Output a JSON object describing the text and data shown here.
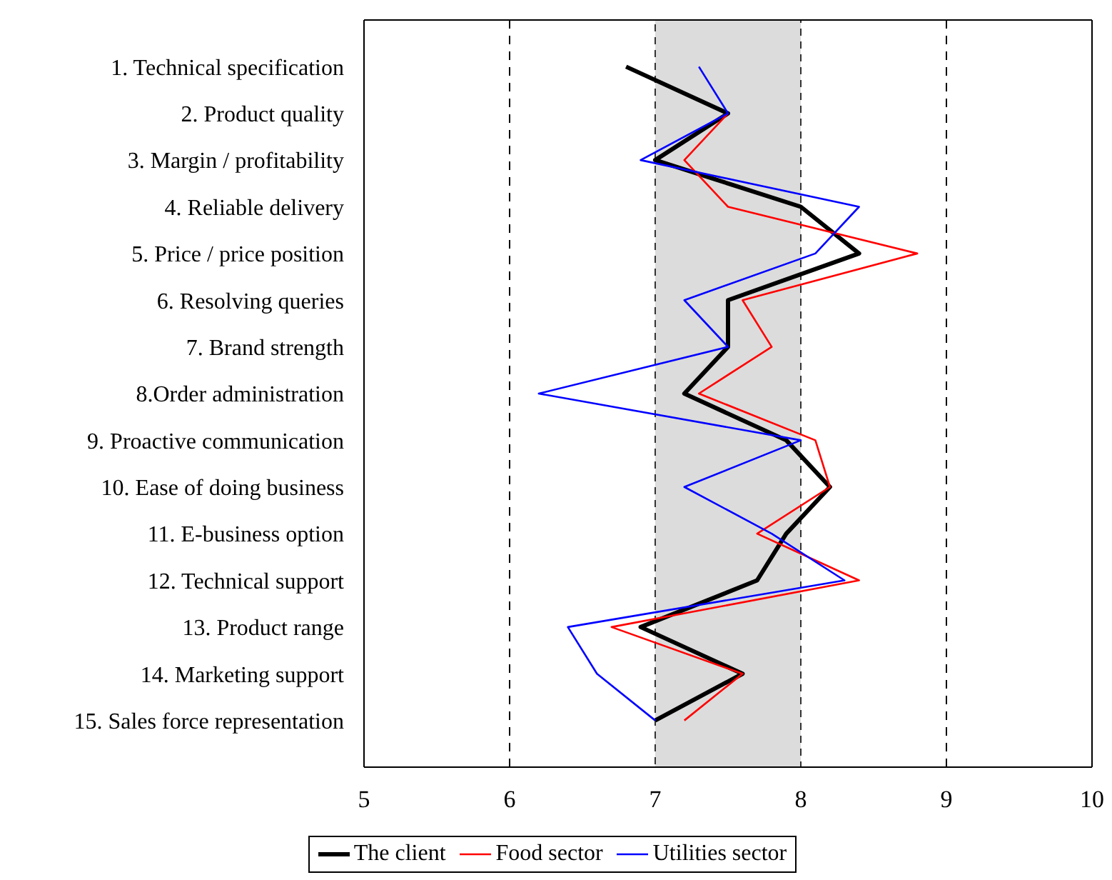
{
  "chart_data": {
    "type": "line",
    "categories": [
      "1. Technical specification",
      "2. Product quality",
      "3. Margin / profitability",
      "4. Reliable delivery",
      "5. Price / price position",
      "6. Resolving queries",
      "7. Brand strength",
      "8.Order administration",
      "9. Proactive communication",
      "10. Ease of doing business",
      "11. E-business option",
      "12. Technical support",
      "13. Product range",
      "14. Marketing support",
      "15. Sales force representation"
    ],
    "series": [
      {
        "name": "The client",
        "color": "#000000",
        "values": [
          6.8,
          7.5,
          7.0,
          8.0,
          8.4,
          7.5,
          7.5,
          7.2,
          7.9,
          8.2,
          7.9,
          7.7,
          6.9,
          7.6,
          7.0
        ]
      },
      {
        "name": "Food sector",
        "color": "#ff0000",
        "values": [
          null,
          7.5,
          7.2,
          7.5,
          8.8,
          7.6,
          7.8,
          7.3,
          8.1,
          8.2,
          7.7,
          8.4,
          6.7,
          7.6,
          7.2
        ]
      },
      {
        "name": "Utilities sector",
        "color": "#0000ff",
        "values": [
          7.3,
          7.5,
          6.9,
          8.4,
          8.1,
          7.2,
          7.5,
          6.2,
          8.0,
          7.2,
          7.8,
          8.3,
          6.4,
          6.6,
          7.0
        ]
      }
    ],
    "orientation": "horizontal",
    "xlim": [
      5,
      10
    ],
    "xticks": [
      5,
      6,
      7,
      8,
      9,
      10
    ],
    "ref_lines": [
      {
        "axis": "x",
        "value": 6,
        "line_style": "dashed",
        "color": "#000000"
      },
      {
        "axis": "x",
        "value": 9,
        "line_style": "dashed",
        "color": "#000000"
      }
    ],
    "bands": [
      {
        "axis": "x",
        "from": 7,
        "to": 8,
        "color": "#dcdcdc"
      }
    ],
    "legend": "bottom",
    "marker": "none",
    "line_style": "solid"
  }
}
